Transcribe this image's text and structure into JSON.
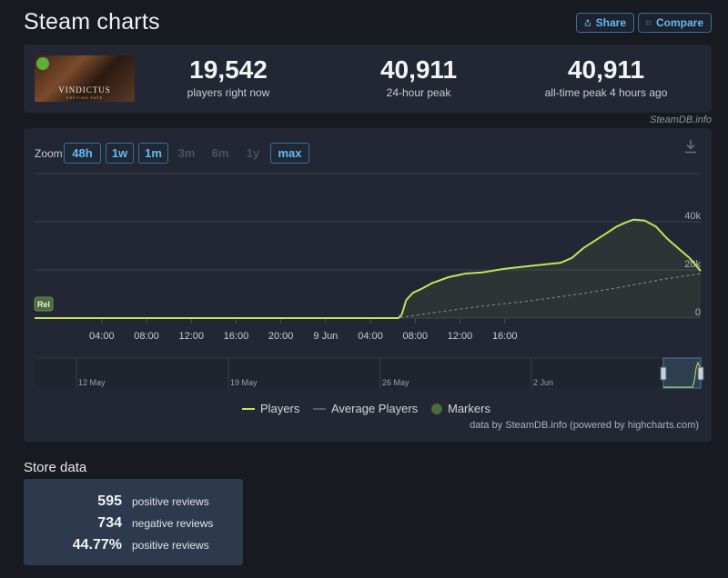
{
  "page": {
    "title": "Steam charts"
  },
  "header": {
    "share_label": "Share",
    "compare_label": "Compare"
  },
  "game": {
    "logo_text": "VINDICTUS",
    "logo_subtitle": "DEFYING FATE"
  },
  "stats": [
    {
      "value": "19,542",
      "label": "players right now"
    },
    {
      "value": "40,911",
      "label": "24-hour peak"
    },
    {
      "value": "40,911",
      "label": "all-time peak 4 hours ago"
    }
  ],
  "credit": "SteamDB.info",
  "chart": {
    "zoom_label": "Zoom",
    "zoom_options": [
      {
        "label": "48h",
        "enabled": true
      },
      {
        "label": "1w",
        "enabled": true
      },
      {
        "label": "1m",
        "enabled": true
      },
      {
        "label": "3m",
        "enabled": false
      },
      {
        "label": "6m",
        "enabled": false
      },
      {
        "label": "1y",
        "enabled": false
      },
      {
        "label": "max",
        "enabled": true
      }
    ],
    "release_marker": "Rel",
    "navigator_labels": [
      "12 May",
      "19 May",
      "26 May",
      "2 Jun"
    ],
    "legend": {
      "players": "Players",
      "average": "Average Players",
      "markers": "Markers"
    },
    "powered_by": "data by SteamDB.info (powered by highcharts.com)",
    "colors": {
      "players": "#c2e35a",
      "average": "#8a8f96",
      "markers": "#4b6b3a",
      "accent": "#67b7f0"
    }
  },
  "chart_data": {
    "type": "line",
    "x_tick_labels": [
      "04:00",
      "08:00",
      "12:00",
      "16:00",
      "20:00",
      "9 Jun",
      "04:00",
      "08:00",
      "12:00",
      "16:00"
    ],
    "y_tick_labels": [
      "0",
      "20k",
      "40k"
    ],
    "ylim": [
      0,
      60000
    ],
    "x_unit": "hours since 00:00 on 8 Jun",
    "series": [
      {
        "name": "Players",
        "x": [
          -2,
          0,
          4,
          8,
          12,
          16,
          20,
          24,
          30.5,
          30.8,
          31.2,
          31.8,
          32.5,
          33.5,
          35,
          36.5,
          38,
          40,
          42,
          44,
          45,
          46,
          47,
          48,
          49,
          50,
          50.7,
          51.5,
          52.5,
          53.5,
          54.5,
          55.5,
          56.5,
          57.5
        ],
        "values": [
          0,
          0,
          0,
          0,
          0,
          0,
          0,
          0,
          0,
          1500,
          7500,
          10500,
          12000,
          14500,
          17000,
          18500,
          19000,
          20500,
          21500,
          22500,
          23000,
          25000,
          29000,
          32000,
          35000,
          38000,
          39500,
          40911,
          40500,
          38000,
          33000,
          29000,
          25000,
          19542
        ]
      },
      {
        "name": "Average Players",
        "x": [
          -2,
          24,
          30.5,
          34,
          38,
          42,
          46,
          50,
          54,
          57.5
        ],
        "values": [
          0,
          0,
          100,
          2500,
          5000,
          7000,
          9500,
          12500,
          16000,
          18500
        ]
      }
    ]
  },
  "store": {
    "title": "Store data",
    "rows": [
      {
        "value": "595",
        "label": "positive reviews"
      },
      {
        "value": "734",
        "label": "negative reviews"
      },
      {
        "value": "44.77%",
        "label": "positive reviews"
      }
    ]
  }
}
